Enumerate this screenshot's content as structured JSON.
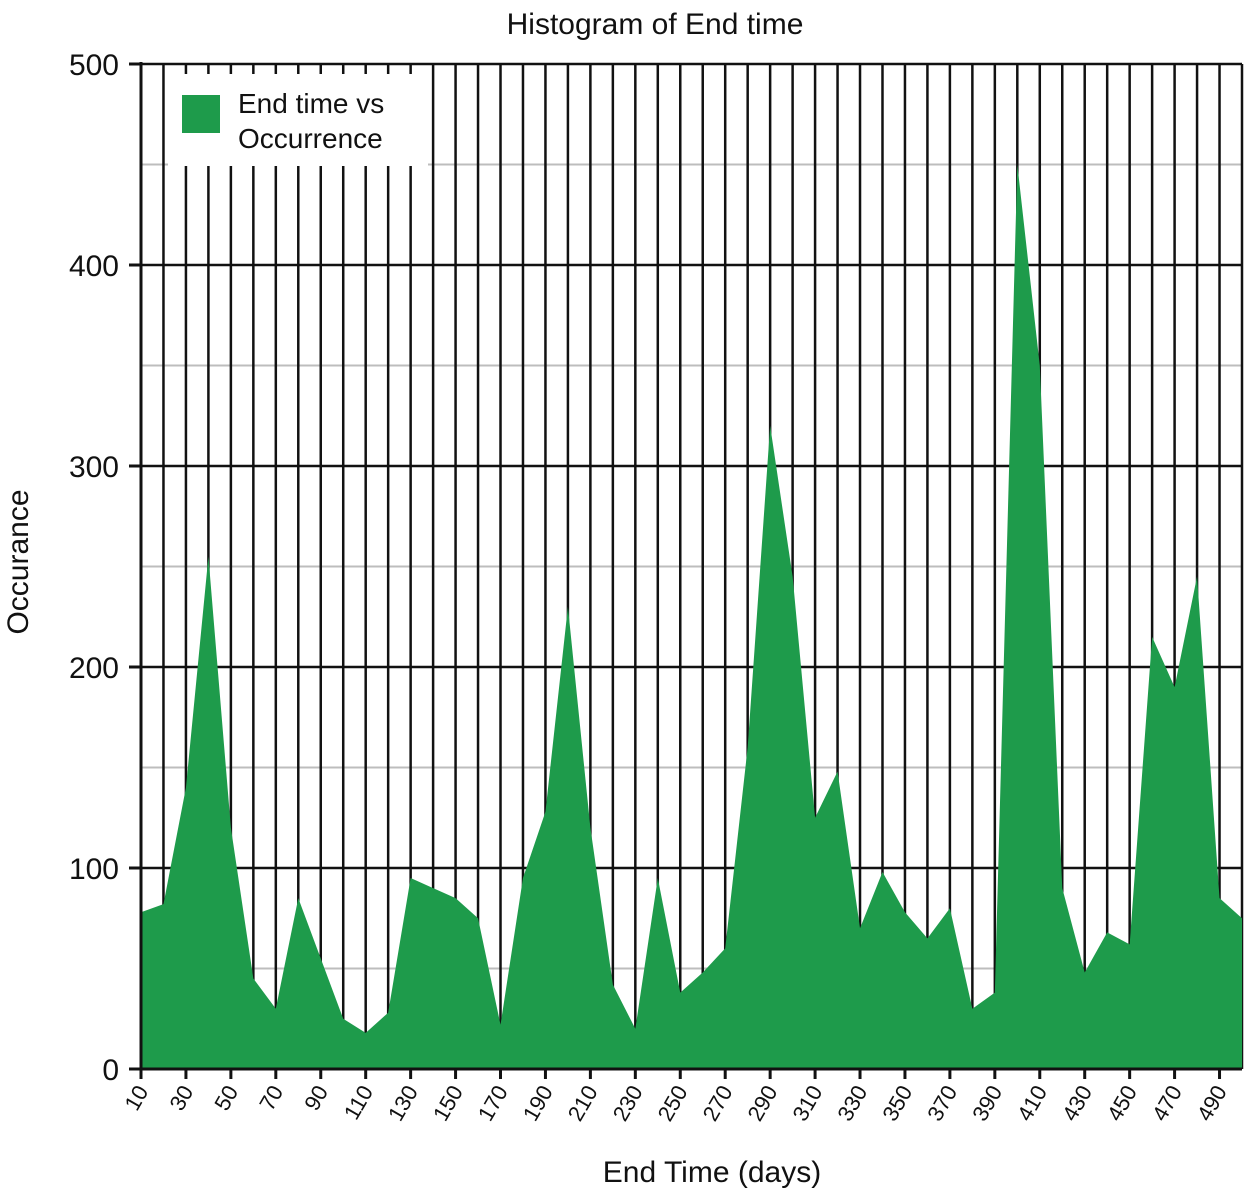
{
  "chart_data": {
    "type": "area",
    "title": "Histogram of End time",
    "xlabel": "End Time (days)",
    "ylabel": "Occurance",
    "xlim": [
      10,
      500
    ],
    "ylim": [
      0,
      500
    ],
    "yticks": [
      0,
      100,
      200,
      300,
      400,
      500
    ],
    "xticks": [
      10,
      30,
      50,
      70,
      90,
      110,
      130,
      150,
      170,
      190,
      210,
      230,
      250,
      270,
      290,
      310,
      330,
      350,
      370,
      390,
      410,
      430,
      450,
      470,
      490
    ],
    "grid": true,
    "legend_position": "top-left",
    "series": [
      {
        "name": "End time vs Occurrence",
        "color": "#1e9b4b",
        "x": [
          10,
          20,
          30,
          40,
          50,
          60,
          70,
          80,
          90,
          100,
          110,
          120,
          130,
          140,
          150,
          160,
          170,
          180,
          190,
          200,
          210,
          220,
          230,
          240,
          250,
          260,
          270,
          280,
          290,
          300,
          310,
          320,
          330,
          340,
          350,
          360,
          370,
          380,
          390,
          400,
          410,
          420,
          430,
          440,
          450,
          460,
          470,
          480,
          490,
          500
        ],
        "values": [
          78,
          82,
          140,
          255,
          120,
          45,
          30,
          85,
          55,
          25,
          18,
          28,
          95,
          90,
          85,
          75,
          22,
          95,
          128,
          230,
          120,
          42,
          20,
          95,
          38,
          48,
          60,
          160,
          320,
          245,
          125,
          148,
          70,
          98,
          78,
          65,
          80,
          30,
          38,
          450,
          350,
          90,
          48,
          68,
          62,
          215,
          190,
          245,
          85,
          75
        ]
      }
    ]
  }
}
